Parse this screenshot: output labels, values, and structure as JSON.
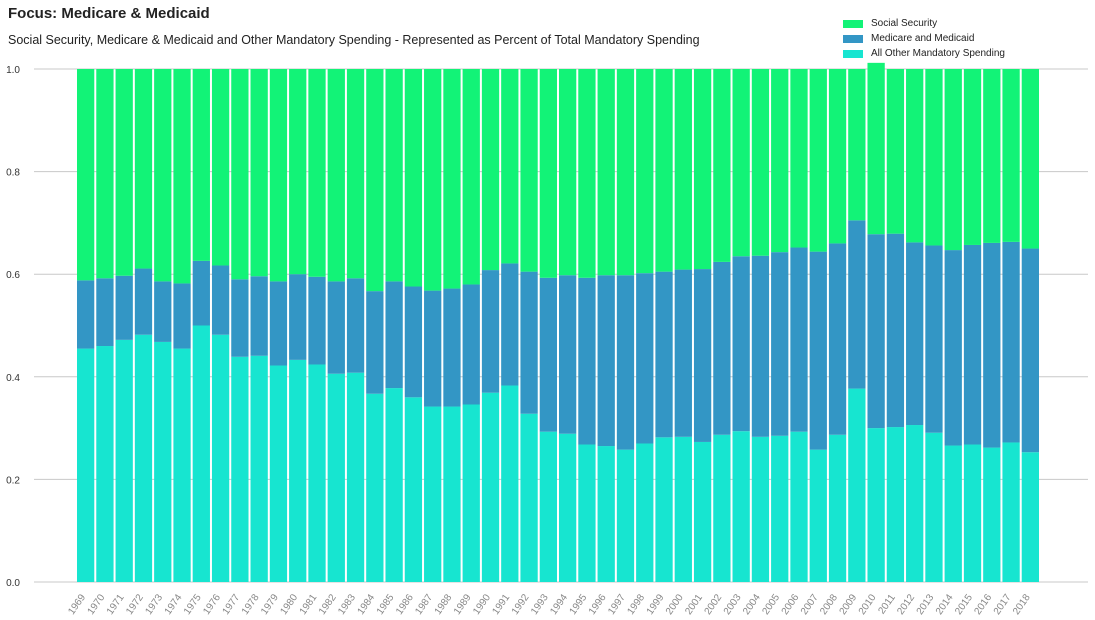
{
  "colors": {
    "social_security": "#12f377",
    "medicare_medicaid": "#3396c5",
    "other": "#17e5d0",
    "grid": "#c8c8c8"
  },
  "chart_data": {
    "type": "bar",
    "stacked": true,
    "title": "Focus: Medicare & Medicaid",
    "subtitle": "Social Security, Medicare & Medicaid and Other Mandatory Spending - Represented as Percent of Total Mandatory Spending",
    "xlabel": "",
    "ylabel": "",
    "ylim": [
      0,
      1.0
    ],
    "yticks": [
      "0.0",
      "0.2",
      "0.4",
      "0.6",
      "0.8",
      "1.0"
    ],
    "grid": true,
    "legend_position": "top-right",
    "categories": [
      "1969",
      "1970",
      "1971",
      "1972",
      "1973",
      "1974",
      "1975",
      "1976",
      "1977",
      "1978",
      "1979",
      "1980",
      "1981",
      "1982",
      "1983",
      "1984",
      "1985",
      "1986",
      "1987",
      "1988",
      "1989",
      "1990",
      "1991",
      "1992",
      "1993",
      "1994",
      "1995",
      "1996",
      "1997",
      "1998",
      "1999",
      "2000",
      "2001",
      "2002",
      "2003",
      "2004",
      "2005",
      "2006",
      "2007",
      "2008",
      "2009",
      "2010",
      "2011",
      "2012",
      "2013",
      "2014",
      "2015",
      "2016",
      "2017",
      "2018"
    ],
    "series": [
      {
        "name": "All Other Mandatory Spending",
        "values": [
          0.455,
          0.46,
          0.472,
          0.482,
          0.468,
          0.455,
          0.5,
          0.482,
          0.439,
          0.441,
          0.422,
          0.433,
          0.424,
          0.406,
          0.408,
          0.367,
          0.378,
          0.36,
          0.342,
          0.342,
          0.346,
          0.369,
          0.383,
          0.328,
          0.293,
          0.289,
          0.268,
          0.265,
          0.258,
          0.27,
          0.282,
          0.283,
          0.273,
          0.287,
          0.294,
          0.283,
          0.285,
          0.293,
          0.258,
          0.287,
          0.377,
          0.3,
          0.302,
          0.306,
          0.291,
          0.266,
          0.268,
          0.262,
          0.272,
          0.253
        ]
      },
      {
        "name": "Medicare and Medicaid",
        "values": [
          0.133,
          0.132,
          0.125,
          0.129,
          0.118,
          0.127,
          0.126,
          0.135,
          0.151,
          0.155,
          0.164,
          0.167,
          0.171,
          0.18,
          0.184,
          0.2,
          0.208,
          0.216,
          0.226,
          0.23,
          0.234,
          0.239,
          0.238,
          0.277,
          0.3,
          0.309,
          0.325,
          0.333,
          0.34,
          0.332,
          0.323,
          0.326,
          0.337,
          0.337,
          0.341,
          0.353,
          0.358,
          0.359,
          0.386,
          0.373,
          0.328,
          0.378,
          0.377,
          0.356,
          0.365,
          0.381,
          0.389,
          0.399,
          0.391,
          0.397
        ]
      },
      {
        "name": "Social Security",
        "values": [
          0.412,
          0.408,
          0.403,
          0.389,
          0.414,
          0.418,
          0.374,
          0.383,
          0.41,
          0.404,
          0.414,
          0.4,
          0.405,
          0.414,
          0.408,
          0.433,
          0.414,
          0.424,
          0.432,
          0.428,
          0.42,
          0.392,
          0.379,
          0.395,
          0.407,
          0.402,
          0.407,
          0.402,
          0.402,
          0.398,
          0.395,
          0.391,
          0.39,
          0.376,
          0.365,
          0.364,
          0.357,
          0.348,
          0.356,
          0.34,
          0.295,
          0.334,
          0.321,
          0.338,
          0.344,
          0.353,
          0.343,
          0.339,
          0.337,
          0.35
        ]
      }
    ],
    "legend": [
      "Social Security",
      "Medicare and Medicaid",
      "All Other Mandatory Spending"
    ]
  }
}
